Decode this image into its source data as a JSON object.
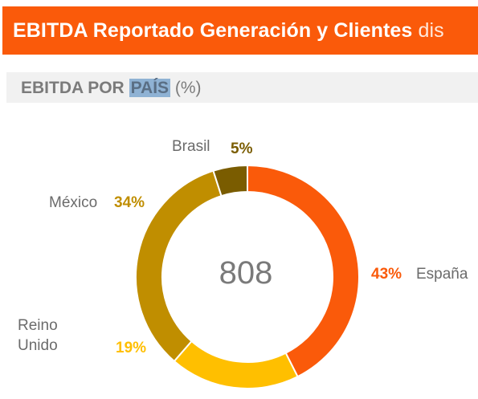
{
  "header": {
    "title": "EBITDA Reportado Generación y Clientes",
    "title_tail": "dis"
  },
  "section": {
    "title_part1": "EBITDA POR",
    "title_highlight": "PAÍS",
    "title_unit": "(%)"
  },
  "chart_data": {
    "type": "pie",
    "style": "donut",
    "center_value": "808",
    "categories": [
      "España",
      "Reino Unido",
      "México",
      "Brasil"
    ],
    "values": [
      43,
      19,
      34,
      5
    ],
    "value_labels": [
      "43%",
      "19%",
      "34%",
      "5%"
    ],
    "label_lines": {
      "Reino Unido": [
        "Reino",
        "Unido"
      ]
    },
    "colors": [
      "#fa5a0a",
      "#ffbf00",
      "#c08e00",
      "#7a5c00"
    ]
  }
}
